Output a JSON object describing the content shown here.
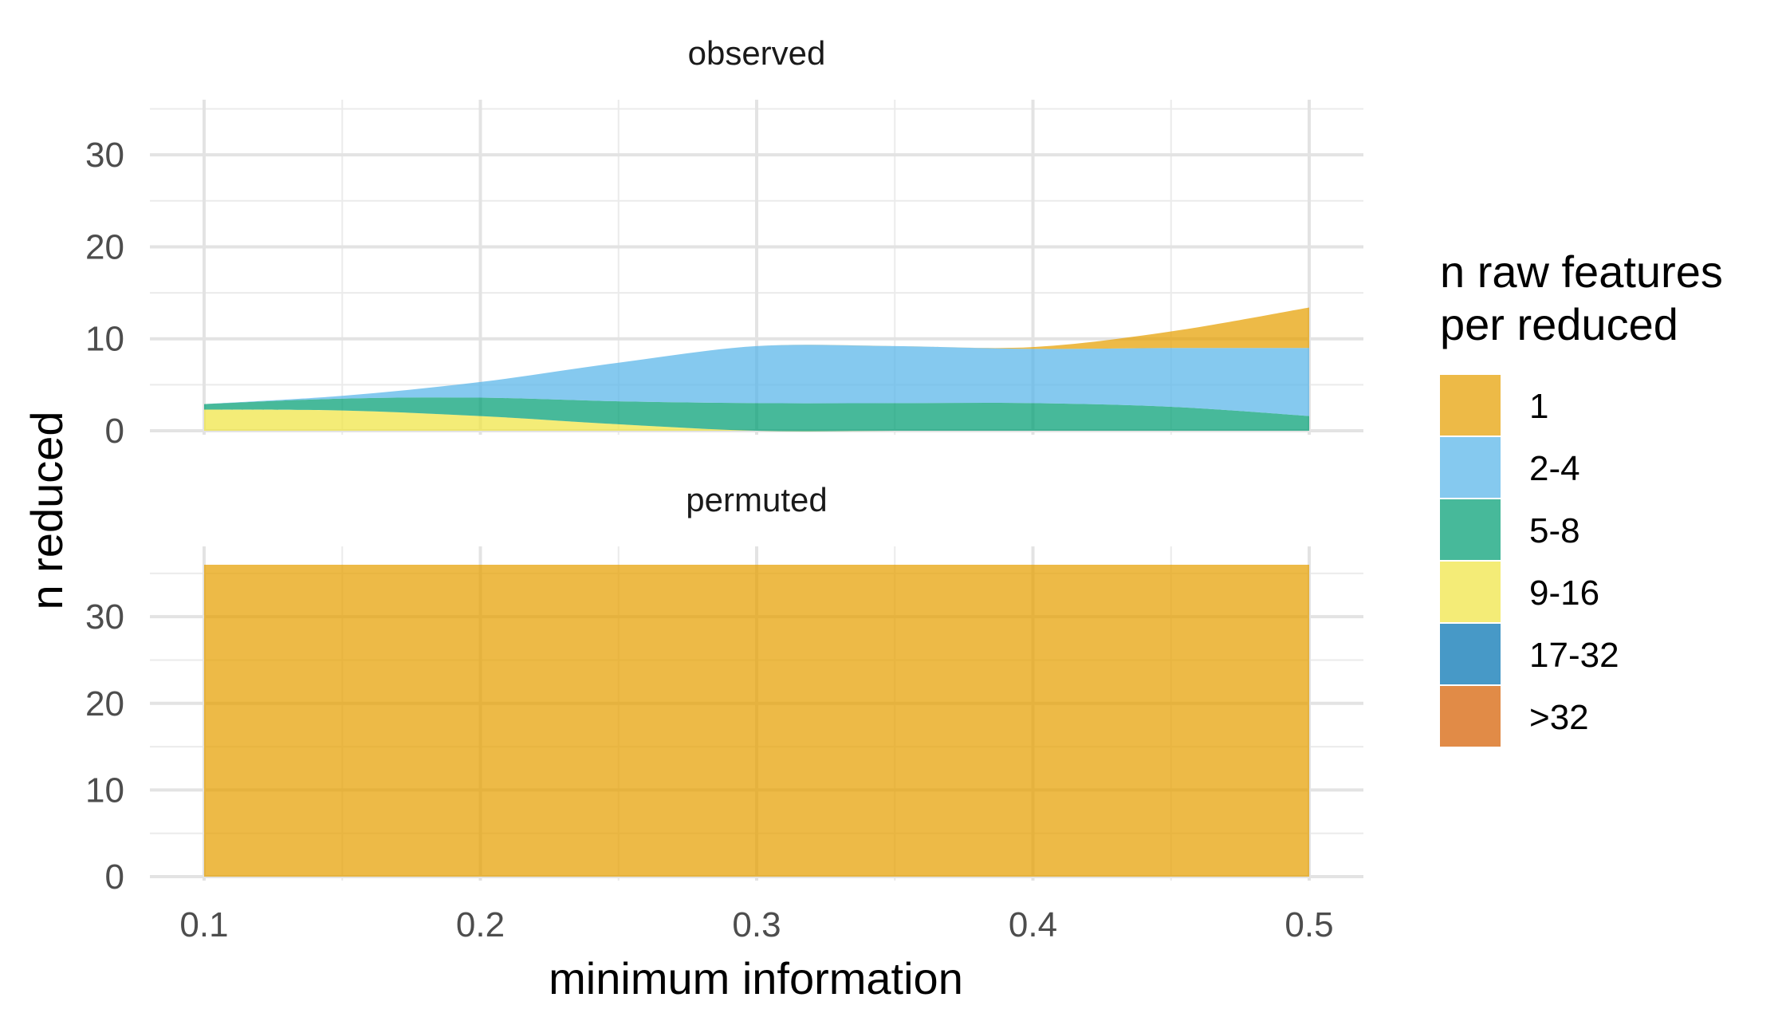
{
  "chart_data": {
    "type": "area",
    "stacked": true,
    "xlabel": "minimum information",
    "ylabel": "n reduced",
    "xlim": [
      0.1,
      0.5
    ],
    "ylim": [
      0,
      36
    ],
    "x_ticks": [
      "0.1",
      "0.2",
      "0.3",
      "0.4",
      "0.5"
    ],
    "y_ticks": [
      "0",
      "10",
      "20",
      "30"
    ],
    "grid": true,
    "legend": {
      "title": "n raw features per reduced",
      "title_lines": [
        "n raw features",
        "per reduced"
      ],
      "placement": "right",
      "entries": [
        {
          "label": "1",
          "color": "#E69F00"
        },
        {
          "label": "2-4",
          "color": "#56B4E9"
        },
        {
          "label": "5-8",
          "color": "#009E73"
        },
        {
          "label": "9-16",
          "color": "#F0E442"
        },
        {
          "label": "17-32",
          "color": "#0072B2"
        },
        {
          "label": ">32",
          "color": "#D55E00"
        }
      ]
    },
    "x": [
      0.1,
      0.15,
      0.2,
      0.25,
      0.3,
      0.35,
      0.4,
      0.45,
      0.5
    ],
    "panels": [
      {
        "title": "observed",
        "series": [
          {
            "name": "9-16",
            "values": [
              2.3,
              2.2,
              1.6,
              0.7,
              0.0,
              0.0,
              0.0,
              0.0,
              0.0
            ]
          },
          {
            "name": "5-8",
            "values": [
              0.6,
              1.3,
              2.0,
              2.5,
              3.0,
              3.0,
              3.0,
              2.6,
              1.6
            ]
          },
          {
            "name": "2-4",
            "values": [
              0.0,
              0.3,
              1.7,
              4.2,
              6.2,
              6.2,
              5.9,
              6.4,
              7.4
            ]
          },
          {
            "name": "1",
            "values": [
              0.0,
              0.0,
              0.0,
              0.0,
              0.0,
              0.0,
              0.2,
              1.8,
              4.4
            ]
          },
          {
            "name": "17-32",
            "values": [
              0,
              0,
              0,
              0,
              0,
              0,
              0,
              0,
              0
            ]
          },
          {
            "name": ">32",
            "values": [
              0,
              0,
              0,
              0,
              0,
              0,
              0,
              0,
              0
            ]
          }
        ]
      },
      {
        "title": "permuted",
        "series": [
          {
            "name": "1",
            "values": [
              36,
              36,
              36,
              36,
              36,
              36,
              36,
              36,
              36
            ]
          },
          {
            "name": "2-4",
            "values": [
              0,
              0,
              0,
              0,
              0,
              0,
              0,
              0,
              0
            ]
          },
          {
            "name": "5-8",
            "values": [
              0,
              0,
              0,
              0,
              0,
              0,
              0,
              0,
              0
            ]
          },
          {
            "name": "9-16",
            "values": [
              0,
              0,
              0,
              0,
              0,
              0,
              0,
              0,
              0
            ]
          },
          {
            "name": "17-32",
            "values": [
              0,
              0,
              0,
              0,
              0,
              0,
              0,
              0,
              0
            ]
          },
          {
            "name": ">32",
            "values": [
              0,
              0,
              0,
              0,
              0,
              0,
              0,
              0,
              0
            ]
          }
        ]
      }
    ]
  }
}
